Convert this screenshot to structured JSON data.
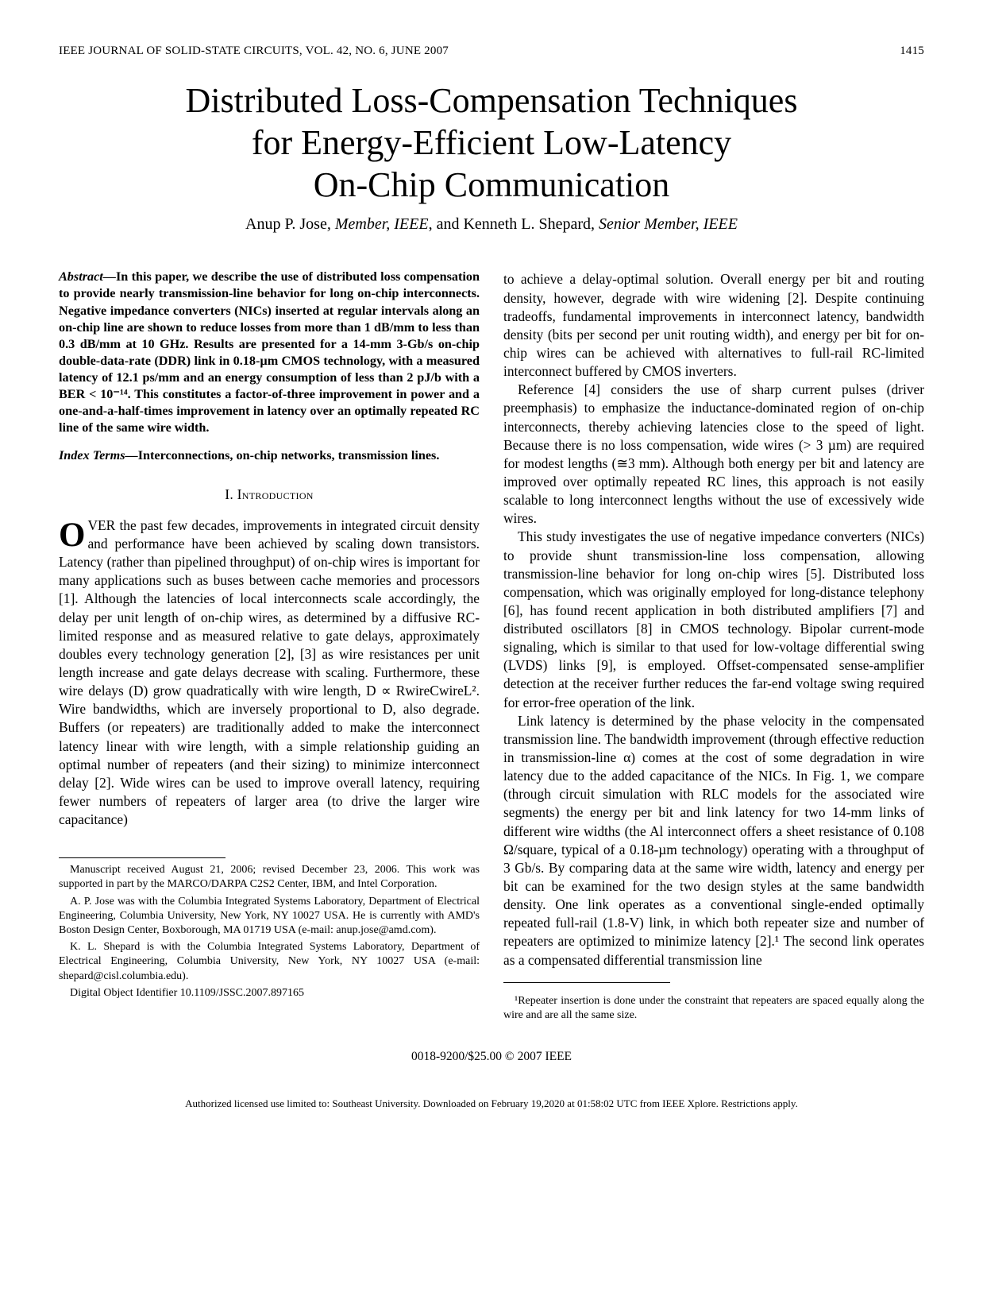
{
  "header": {
    "journal": "IEEE JOURNAL OF SOLID-STATE CIRCUITS, VOL. 42, NO. 6, JUNE 2007",
    "page_number": "1415"
  },
  "title_lines": [
    "Distributed Loss-Compensation Techniques",
    "for Energy-Efficient Low-Latency",
    "On-Chip Communication"
  ],
  "authors": {
    "a1_name": "Anup P. Jose",
    "a1_role": ", Member, IEEE",
    "sep": ", and ",
    "a2_name": "Kenneth L. Shepard",
    "a2_role": ", Senior Member, IEEE"
  },
  "abstract": {
    "label": "Abstract—",
    "text": "In this paper, we describe the use of distributed loss compensation to provide nearly transmission-line behavior for long on-chip interconnects. Negative impedance converters (NICs) inserted at regular intervals along an on-chip line are shown to reduce losses from more than 1 dB/mm to less than 0.3 dB/mm at 10 GHz. Results are presented for a 14-mm 3-Gb/s on-chip double-data-rate (DDR) link in 0.18-µm CMOS technology, with a measured latency of 12.1 ps/mm and an energy consumption of less than 2 pJ/b with a BER < 10⁻¹⁴. This constitutes a factor-of-three improvement in power and a one-and-a-half-times improvement in latency over an optimally repeated RC line of the same wire width."
  },
  "index_terms": {
    "label": "Index Terms—",
    "text": "Interconnections, on-chip networks, transmission lines."
  },
  "section": "I.  Introduction",
  "left_col": {
    "p1": "VER the past few decades, improvements in integrated circuit density and performance have been achieved by scaling down transistors. Latency (rather than pipelined throughput) of on-chip wires is important for many applications such as buses between cache memories and processors [1]. Although the latencies of local interconnects scale accordingly, the delay per unit length of on-chip wires, as determined by a diffusive RC-limited response and as measured relative to gate delays, approximately doubles every technology generation [2], [3] as wire resistances per unit length increase and gate delays decrease with scaling. Furthermore, these wire delays (D) grow quadratically with wire length, D ∝ RwireCwireL². Wire bandwidths, which are inversely proportional to D, also degrade. Buffers (or repeaters) are traditionally added to make the interconnect latency linear with wire length, with a simple relationship guiding an optimal number of repeaters (and their sizing) to minimize interconnect delay [2]. Wide wires can be used to improve overall latency, requiring fewer numbers of repeaters of larger area (to drive the larger wire capacitance)"
  },
  "footnotes": {
    "f1": "Manuscript received August 21, 2006; revised December 23, 2006. This work was supported in part by the MARCO/DARPA C2S2 Center, IBM, and Intel Corporation.",
    "f2": "A. P. Jose was with the Columbia Integrated Systems Laboratory, Department of Electrical Engineering, Columbia University, New York, NY 10027 USA. He is currently with AMD's Boston Design Center, Boxborough, MA 01719 USA (e-mail: anup.jose@amd.com).",
    "f3": "K. L. Shepard is with the Columbia Integrated Systems Laboratory, Department of Electrical Engineering, Columbia University, New York, NY 10027 USA (e-mail: shepard@cisl.columbia.edu).",
    "f4": "Digital Object Identifier 10.1109/JSSC.2007.897165"
  },
  "right_col": {
    "p1": "to achieve a delay-optimal solution. Overall energy per bit and routing density, however, degrade with wire widening [2]. Despite continuing tradeoffs, fundamental improvements in interconnect latency, bandwidth density (bits per second per unit routing width), and energy per bit for on-chip wires can be achieved with alternatives to full-rail RC-limited interconnect buffered by CMOS inverters.",
    "p2": "Reference [4] considers the use of sharp current pulses (driver preemphasis) to emphasize the inductance-dominated region of on-chip interconnects, thereby achieving latencies close to the speed of light. Because there is no loss compensation, wide wires (> 3 µm) are required for modest lengths (≅3 mm). Although both energy per bit and latency are improved over optimally repeated RC lines, this approach is not easily scalable to long interconnect lengths without the use of excessively wide wires.",
    "p3": "This study investigates the use of negative impedance converters (NICs) to provide shunt transmission-line loss compensation, allowing transmission-line behavior for long on-chip wires [5]. Distributed loss compensation, which was originally employed for long-distance telephony [6], has found recent application in both distributed amplifiers [7] and distributed oscillators [8] in CMOS technology. Bipolar current-mode signaling, which is similar to that used for low-voltage differential swing (LVDS) links [9], is employed. Offset-compensated sense-amplifier detection at the receiver further reduces the far-end voltage swing required for error-free operation of the link.",
    "p4": "Link latency is determined by the phase velocity in the compensated transmission line. The bandwidth improvement (through effective reduction in transmission-line α) comes at the cost of some degradation in wire latency due to the added capacitance of the NICs. In Fig. 1, we compare (through circuit simulation with RLC models for the associated wire segments) the energy per bit and link latency for two 14-mm links of different wire widths (the Al interconnect offers a sheet resistance of 0.108 Ω/square, typical of a 0.18-µm technology) operating with a throughput of 3 Gb/s. By comparing data at the same wire width, latency and energy per bit can be examined for the two design styles at the same bandwidth density. One link operates as a conventional single-ended optimally repeated full-rail (1.8-V) link, in which both repeater size and number of repeaters are optimized to minimize latency [2].¹ The second link operates as a compensated differential transmission line"
  },
  "right_footnote": "¹Repeater insertion is done under the constraint that repeaters are spaced equally along the wire and are all the same size.",
  "copyright": "0018-9200/$25.00 © 2007 IEEE",
  "license_footer": "Authorized licensed use limited to: Southeast University. Downloaded on February 19,2020 at 01:58:02 UTC from IEEE Xplore. Restrictions apply."
}
